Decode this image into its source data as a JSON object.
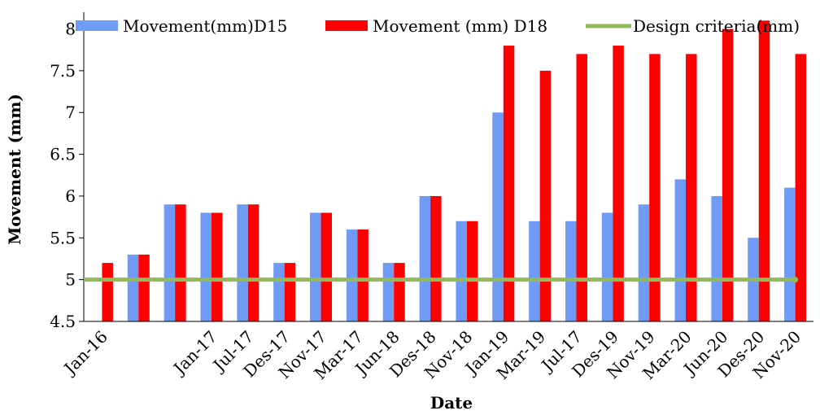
{
  "chart_data": {
    "type": "bar",
    "title": "",
    "xlabel": "Date",
    "ylabel": "Movement (mm)",
    "ylim": [
      4.5,
      8.2
    ],
    "yticks": [
      "4.5",
      "5",
      "5.5",
      "6",
      "6.5",
      "7",
      "7.5",
      "8"
    ],
    "grid": false,
    "legend_position": "top",
    "slot_labels": [
      "Jan-16",
      "",
      "",
      "Jan-17",
      "Jul-17",
      "Des-17",
      "Nov-17",
      "Mar-17",
      "Jun-18",
      "Des-18",
      "Nov-18",
      "Jan-19",
      "Mar-19",
      "Jul-17",
      "Des-19",
      "Nov-19",
      "Mar-20",
      "Jun-20",
      "Des-20",
      "Nov-20"
    ],
    "series": [
      {
        "name": "Movement(mm)D15",
        "color": "#6f9bf5",
        "values": [
          null,
          5.3,
          5.9,
          5.8,
          5.9,
          5.2,
          5.8,
          5.6,
          5.2,
          6.0,
          5.7,
          7.0,
          5.7,
          5.7,
          5.8,
          5.9,
          6.2,
          6.0,
          5.5,
          6.1
        ]
      },
      {
        "name": "Movement (mm) D18",
        "color": "#ff0000",
        "values": [
          5.2,
          5.3,
          5.9,
          5.8,
          5.9,
          5.2,
          5.8,
          5.6,
          5.2,
          6.0,
          5.7,
          7.8,
          7.5,
          7.7,
          7.8,
          7.7,
          7.7,
          8.0,
          8.1,
          7.7
        ]
      }
    ],
    "reference_line": {
      "name": "Design criteria(mm)",
      "value": 5.0,
      "color": "#93b95a"
    }
  }
}
